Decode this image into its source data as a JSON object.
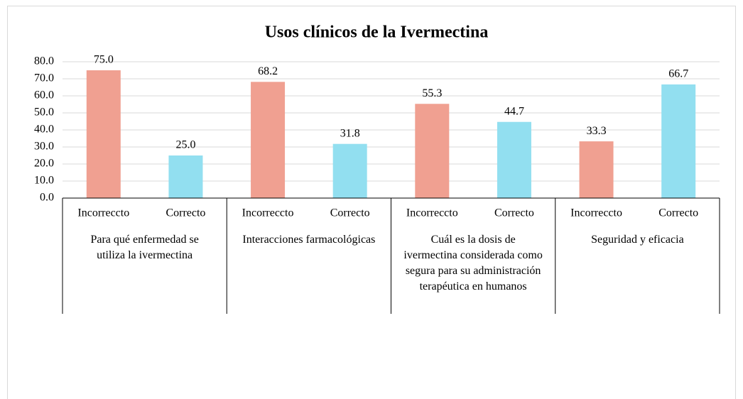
{
  "chart_data": {
    "type": "bar",
    "title": "Usos clínicos de la Ivermectina",
    "categories": [
      "Para qué enfermedad se utiliza la ivermectina",
      "Interacciones farmacológicas",
      "Cuál es la dosis de ivermectina considerada como segura para su administración terapéutica en humanos",
      "Seguridad y eficacia"
    ],
    "series": [
      {
        "name": "Incorreccto",
        "color": "#f0a091",
        "values": [
          75,
          68.2,
          55.3,
          33.3
        ],
        "value_labels": [
          "75.0",
          "68.2",
          "55.3",
          "33.3"
        ]
      },
      {
        "name": "Correcto",
        "color": "#92dff0",
        "values": [
          25,
          31.8,
          44.7,
          66.7
        ],
        "value_labels": [
          "25.0",
          "31.8",
          "44.7",
          "66.7"
        ]
      }
    ],
    "ylim": [
      0,
      80
    ],
    "yticks": [
      {
        "value": 0,
        "label": "0.0"
      },
      {
        "value": 10,
        "label": "10.0"
      },
      {
        "value": 20,
        "label": "20.0"
      },
      {
        "value": 30,
        "label": "30.0"
      },
      {
        "value": 40,
        "label": "40.0"
      },
      {
        "value": 50,
        "label": "50.0"
      },
      {
        "value": 60,
        "label": "60.0"
      },
      {
        "value": 70,
        "label": "70.0"
      },
      {
        "value": 80,
        "label": "80.0"
      }
    ],
    "grid": true
  }
}
